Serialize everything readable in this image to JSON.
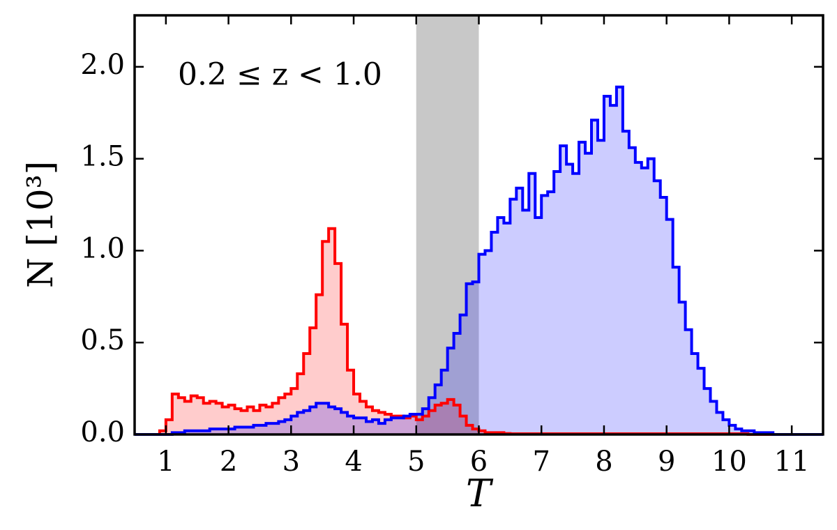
{
  "chart_data": {
    "type": "histogram",
    "xlabel": "T",
    "ylabel": "N [10³]",
    "annotation": "0.2 ≤ z < 1.0",
    "xlim": [
      0.5,
      11.5
    ],
    "ylim": [
      0,
      2.28
    ],
    "xticks": [
      1,
      2,
      3,
      4,
      5,
      6,
      7,
      8,
      9,
      10,
      11
    ],
    "yticks": [
      {
        "value": 0,
        "label": "0.0"
      },
      0.5,
      {
        "value": 1,
        "label": "1.0"
      },
      1.5,
      {
        "value": 2,
        "label": "2.0"
      }
    ],
    "shaded_region": [
      5.0,
      6.0
    ],
    "shaded_color": "#c8c8c8",
    "bins": [
      0.5,
      0.6,
      0.7,
      0.8,
      0.9,
      1.0,
      1.1,
      1.2,
      1.3,
      1.4,
      1.5,
      1.6,
      1.7,
      1.8,
      1.9,
      2.0,
      2.1,
      2.2,
      2.3,
      2.4,
      2.5,
      2.6,
      2.7,
      2.8,
      2.9,
      3.0,
      3.1,
      3.2,
      3.3,
      3.4,
      3.5,
      3.6,
      3.7,
      3.8,
      3.9,
      4.0,
      4.1,
      4.2,
      4.3,
      4.4,
      4.5,
      4.6,
      4.7,
      4.8,
      4.9,
      5.0,
      5.1,
      5.2,
      5.3,
      5.4,
      5.5,
      5.6,
      5.7,
      5.8,
      5.9,
      6.0,
      6.1,
      6.2,
      6.3,
      6.4,
      6.5,
      6.6,
      6.7,
      6.8,
      6.9,
      7.0,
      7.1,
      7.2,
      7.3,
      7.4,
      7.5,
      7.6,
      7.7,
      7.8,
      7.9,
      8.0,
      8.1,
      8.2,
      8.3,
      8.4,
      8.5,
      8.6,
      8.7,
      8.8,
      8.9,
      9.0,
      9.1,
      9.2,
      9.3,
      9.4,
      9.5,
      9.6,
      9.7,
      9.8,
      9.9,
      10.0,
      10.1,
      10.2,
      10.3,
      10.4,
      10.5,
      10.6,
      10.7,
      10.8,
      10.9,
      11.0,
      11.1,
      11.2,
      11.3,
      11.4,
      11.5
    ],
    "series": [
      {
        "color": "#ff0000",
        "values": [
          0,
          0,
          0,
          0,
          0.02,
          0.08,
          0.22,
          0.2,
          0.18,
          0.21,
          0.2,
          0.17,
          0.18,
          0.17,
          0.15,
          0.16,
          0.14,
          0.13,
          0.15,
          0.13,
          0.16,
          0.15,
          0.17,
          0.2,
          0.22,
          0.25,
          0.33,
          0.44,
          0.58,
          0.76,
          1.05,
          1.12,
          0.93,
          0.6,
          0.35,
          0.22,
          0.18,
          0.15,
          0.13,
          0.12,
          0.11,
          0.1,
          0.1,
          0.09,
          0.1,
          0.08,
          0.1,
          0.13,
          0.16,
          0.17,
          0.19,
          0.16,
          0.1,
          0.05,
          0.03,
          0.02,
          0.01,
          0.01,
          0.01,
          0.005,
          0.004,
          0.004,
          0.004,
          0.004,
          0.004,
          0.004,
          0.004,
          0.004,
          0.004,
          0.004,
          0.004,
          0.004,
          0.004,
          0.004,
          0.004,
          0.004,
          0.004,
          0.004,
          0.004,
          0.004,
          0.004,
          0.004,
          0.004,
          0.004,
          0.004,
          0.004,
          0.004,
          0.004,
          0.004,
          0.004,
          0.004,
          0.004,
          0.004,
          0.004,
          0.004,
          0.004,
          0.004,
          0.004,
          0,
          0,
          0,
          0,
          0,
          0,
          0,
          0,
          0,
          0,
          0,
          0
        ]
      },
      {
        "color": "#0000ff",
        "values": [
          0,
          0,
          0,
          0,
          0,
          0,
          0.01,
          0.01,
          0.02,
          0.02,
          0.02,
          0.02,
          0.03,
          0.03,
          0.03,
          0.03,
          0.04,
          0.04,
          0.04,
          0.05,
          0.05,
          0.06,
          0.06,
          0.07,
          0.08,
          0.1,
          0.12,
          0.13,
          0.15,
          0.17,
          0.17,
          0.15,
          0.14,
          0.12,
          0.1,
          0.09,
          0.09,
          0.07,
          0.08,
          0.06,
          0.08,
          0.09,
          0.09,
          0.1,
          0.11,
          0.11,
          0.14,
          0.2,
          0.27,
          0.35,
          0.47,
          0.55,
          0.65,
          0.82,
          0.83,
          0.98,
          1.0,
          1.1,
          1.18,
          1.15,
          1.28,
          1.34,
          1.22,
          1.42,
          1.18,
          1.3,
          1.32,
          1.43,
          1.57,
          1.47,
          1.42,
          1.59,
          1.53,
          1.71,
          1.6,
          1.84,
          1.79,
          1.89,
          1.65,
          1.56,
          1.48,
          1.45,
          1.5,
          1.38,
          1.29,
          1.17,
          0.91,
          0.72,
          0.57,
          0.44,
          0.36,
          0.25,
          0.18,
          0.12,
          0.08,
          0.05,
          0.03,
          0.02,
          0.02,
          0.01,
          0.01,
          0.01,
          0,
          0,
          0,
          0,
          0,
          0,
          0,
          0
        ]
      }
    ]
  }
}
